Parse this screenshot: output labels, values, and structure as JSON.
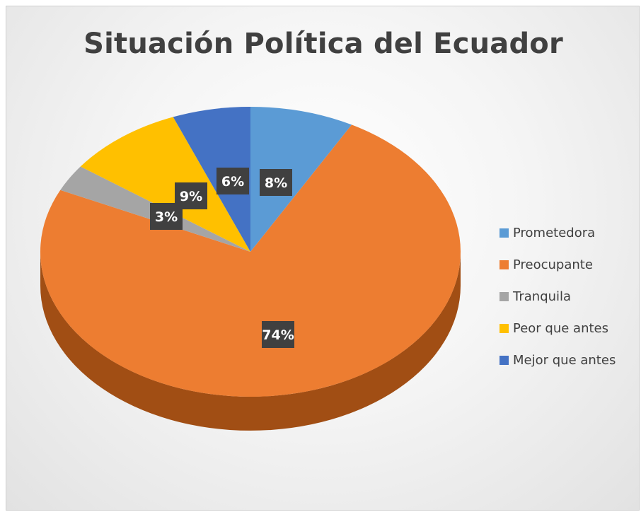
{
  "chart_data": {
    "type": "pie",
    "title": "Situación Política del Ecuador",
    "categories": [
      "Prometedora",
      "Preocupante",
      "Tranquila",
      "Peor que antes",
      "Mejor que antes"
    ],
    "values": [
      8,
      74,
      3,
      9,
      6
    ],
    "labels": [
      "8%",
      "74%",
      "3%",
      "9%",
      "6%"
    ],
    "colors": [
      "#5b9bd5",
      "#ed7d31",
      "#a5a5a5",
      "#ffc000",
      "#4472c4"
    ],
    "side_colors": [
      "#3a6f9e",
      "#a14e14",
      "#6e6e6e",
      "#b58700",
      "#2c4f8e"
    ],
    "legend_position": "right",
    "style": "3d"
  }
}
